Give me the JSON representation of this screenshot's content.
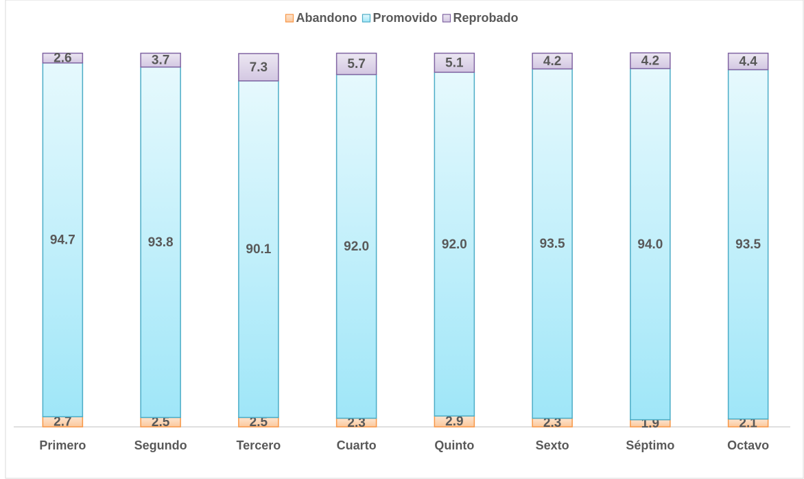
{
  "chart_data": {
    "type": "stacked_bar",
    "categories": [
      "Primero",
      "Segundo",
      "Tercero",
      "Cuarto",
      "Quinto",
      "Sexto",
      "Séptimo",
      "Octavo"
    ],
    "series": [
      {
        "name": "Abandono",
        "color": "#f79646",
        "values": [
          2.7,
          2.5,
          2.5,
          2.3,
          2.9,
          2.3,
          1.9,
          2.1
        ],
        "value_labels": [
          "2.7",
          "2.5",
          "2.5",
          "2.3",
          "2.9",
          "2.3",
          "1.9",
          "2.1"
        ]
      },
      {
        "name": "Promovido",
        "color": "#4bacc6",
        "values": [
          94.7,
          93.8,
          90.1,
          92.0,
          92.0,
          93.5,
          94.0,
          93.5
        ],
        "value_labels": [
          "94.7",
          "93.8",
          "90.1",
          "92.0",
          "92.0",
          "93.5",
          "94.0",
          "93.5"
        ]
      },
      {
        "name": "Reprobado",
        "color": "#8064a2",
        "values": [
          2.6,
          3.7,
          7.3,
          5.7,
          5.1,
          4.2,
          4.2,
          4.4
        ],
        "value_labels": [
          "2.6",
          "3.7",
          "7.3",
          "5.7",
          "5.1",
          "4.2",
          "4.2",
          "4.4"
        ]
      }
    ],
    "legend": "top"
  }
}
